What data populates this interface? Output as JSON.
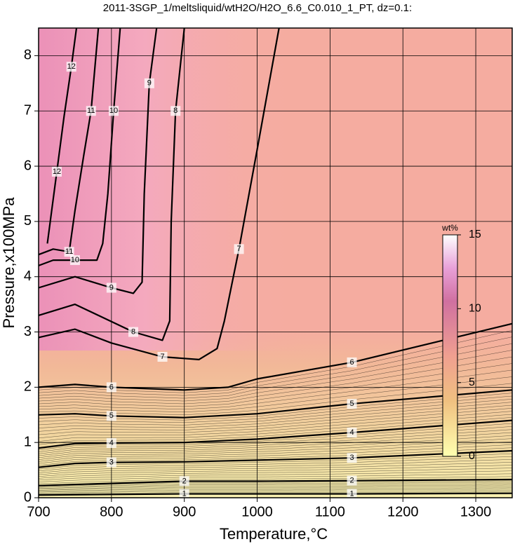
{
  "chart_data": {
    "type": "contour",
    "title": "2011-3SGP_1/meltsliquid/wtH2O/H2O_6.6_C0.010_1_PT, dz=0.1:",
    "x_label": "Temperature,°C",
    "y_label": "Pressure,x100MPa",
    "xlim": [
      700,
      1350
    ],
    "ylim": [
      0,
      8.5
    ],
    "xticks": [
      700,
      800,
      900,
      1000,
      1100,
      1200,
      1300
    ],
    "yticks": [
      0,
      1,
      2,
      3,
      4,
      5,
      6,
      7,
      8
    ],
    "grid": true,
    "contours": [
      {
        "level": 1,
        "x": [
          700,
          800,
          900,
          1000,
          1130,
          1350
        ],
        "y": [
          0.05,
          0.06,
          0.07,
          0.07,
          0.07,
          0.08
        ]
      },
      {
        "level": 2,
        "x": [
          700,
          800,
          900,
          1000,
          1130,
          1350
        ],
        "y": [
          0.22,
          0.26,
          0.3,
          0.3,
          0.31,
          0.33
        ]
      },
      {
        "level": 3,
        "x": [
          700,
          750,
          800,
          900,
          1000,
          1130,
          1350
        ],
        "y": [
          0.55,
          0.62,
          0.64,
          0.65,
          0.68,
          0.72,
          0.85
        ]
      },
      {
        "level": 4,
        "x": [
          700,
          750,
          800,
          900,
          1000,
          1130,
          1350
        ],
        "y": [
          0.9,
          0.98,
          0.99,
          1.0,
          1.06,
          1.18,
          1.4
        ]
      },
      {
        "level": 5,
        "x": [
          700,
          750,
          800,
          900,
          1000,
          1130,
          1350
        ],
        "y": [
          1.5,
          1.52,
          1.48,
          1.45,
          1.52,
          1.7,
          1.95
        ]
      },
      {
        "level": 6,
        "x": [
          700,
          750,
          800,
          900,
          960,
          1000,
          1130,
          1350
        ],
        "y": [
          2.0,
          2.05,
          2.0,
          1.95,
          2.0,
          2.15,
          2.45,
          3.15
        ]
      },
      {
        "level": 7,
        "x": [
          700,
          750,
          800,
          870,
          920,
          945,
          955,
          975,
          1000,
          1030
        ],
        "y": [
          2.9,
          3.05,
          2.8,
          2.55,
          2.5,
          2.7,
          3.2,
          4.5,
          6.3,
          8.5
        ]
      },
      {
        "level": 8,
        "x": [
          700,
          750,
          830,
          870,
          880,
          882,
          888,
          900
        ],
        "y": [
          3.3,
          3.5,
          3.0,
          2.85,
          3.2,
          5.0,
          7.0,
          8.5
        ]
      },
      {
        "level": 9,
        "x": [
          700,
          750,
          800,
          830,
          842,
          845,
          852,
          862
        ],
        "y": [
          3.8,
          4.0,
          3.8,
          3.7,
          3.9,
          5.5,
          7.5,
          8.5
        ]
      },
      {
        "level": 10,
        "x": [
          700,
          720,
          750,
          780,
          788,
          795,
          803,
          812
        ],
        "y": [
          4.2,
          4.3,
          4.3,
          4.3,
          4.6,
          5.5,
          7.0,
          8.5
        ]
      },
      {
        "level": 11,
        "x": [
          700,
          720,
          742,
          750,
          762,
          772,
          782
        ],
        "y": [
          4.4,
          4.5,
          4.45,
          5.2,
          6.2,
          7.0,
          8.5
        ]
      },
      {
        "level": 12,
        "x": [
          712,
          718,
          725,
          735,
          745,
          752
        ],
        "y": [
          4.6,
          5.2,
          5.9,
          6.9,
          7.8,
          8.5
        ]
      }
    ],
    "colorbar": {
      "label": "wt%",
      "lim": [
        0,
        15
      ],
      "ticks": [
        0,
        5,
        10,
        15
      ]
    }
  }
}
